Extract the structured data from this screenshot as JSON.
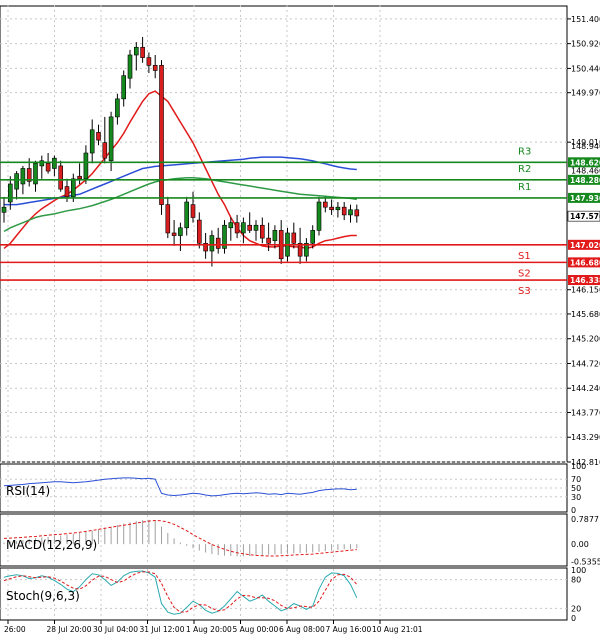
{
  "chart_data": [
    {
      "panel": "main",
      "type": "candlestick",
      "ylim": [
        142.81,
        151.65
      ],
      "y_ticks": [
        "151.400",
        "150.920",
        "150.440",
        "149.970",
        "149.010",
        "147.576",
        "147.020",
        "146.680",
        "146.338",
        "146.150",
        "145.680",
        "145.200",
        "144.720",
        "144.240",
        "143.770",
        "143.290",
        "142.810"
      ],
      "y_ticks_partial": [
        "148.940",
        "148.460"
      ],
      "x_ticks": [
        "26:00",
        "28 Jul 20:00",
        "30 Jul 04:00",
        "31 Jul 12:00",
        "1 Aug 20:00",
        "5 Aug 00:00",
        "6 Aug 08:00",
        "7 Aug 16:00",
        "10 Aug 21:01"
      ],
      "current_price": "147.576",
      "levels": [
        {
          "name": "R3",
          "value": "148.620",
          "color": "#16891e"
        },
        {
          "name": "R2",
          "value": "148.280",
          "color": "#16891e"
        },
        {
          "name": "R1",
          "value": "147.930",
          "color": "#16891e"
        },
        {
          "name": "S1",
          "value": "147.020",
          "color": "#e11919"
        },
        {
          "name": "S2",
          "value": "146.680",
          "color": "#e11919"
        },
        {
          "name": "S3",
          "value": "146.338",
          "color": "#e11919"
        }
      ],
      "candles": [
        {
          "o": 147.65,
          "h": 147.95,
          "l": 147.45,
          "c": 147.75
        },
        {
          "o": 147.85,
          "h": 148.35,
          "l": 147.7,
          "c": 148.2
        },
        {
          "o": 148.1,
          "h": 148.45,
          "l": 147.9,
          "c": 148.4
        },
        {
          "o": 148.2,
          "h": 148.55,
          "l": 148.0,
          "c": 148.5
        },
        {
          "o": 148.5,
          "h": 148.7,
          "l": 148.15,
          "c": 148.25
        },
        {
          "o": 148.2,
          "h": 148.65,
          "l": 148.05,
          "c": 148.6
        },
        {
          "o": 148.55,
          "h": 148.75,
          "l": 148.3,
          "c": 148.65
        },
        {
          "o": 148.6,
          "h": 148.8,
          "l": 148.4,
          "c": 148.45
        },
        {
          "o": 148.5,
          "h": 148.75,
          "l": 148.35,
          "c": 148.7
        },
        {
          "o": 148.55,
          "h": 148.65,
          "l": 148.05,
          "c": 148.1
        },
        {
          "o": 148.15,
          "h": 148.3,
          "l": 147.85,
          "c": 147.95
        },
        {
          "o": 147.95,
          "h": 148.4,
          "l": 147.85,
          "c": 148.3
        },
        {
          "o": 148.35,
          "h": 148.6,
          "l": 148.2,
          "c": 148.3
        },
        {
          "o": 148.3,
          "h": 148.95,
          "l": 148.2,
          "c": 148.8
        },
        {
          "o": 148.8,
          "h": 149.45,
          "l": 148.6,
          "c": 149.25
        },
        {
          "o": 149.2,
          "h": 149.35,
          "l": 148.95,
          "c": 149.05
        },
        {
          "o": 149.0,
          "h": 149.5,
          "l": 148.6,
          "c": 148.7
        },
        {
          "o": 148.65,
          "h": 149.6,
          "l": 148.45,
          "c": 149.5
        },
        {
          "o": 149.5,
          "h": 149.95,
          "l": 149.35,
          "c": 149.85
        },
        {
          "o": 149.85,
          "h": 150.4,
          "l": 149.7,
          "c": 150.3
        },
        {
          "o": 150.25,
          "h": 150.8,
          "l": 150.05,
          "c": 150.7
        },
        {
          "o": 150.7,
          "h": 150.95,
          "l": 150.4,
          "c": 150.85
        },
        {
          "o": 150.85,
          "h": 151.05,
          "l": 150.55,
          "c": 150.65
        },
        {
          "o": 150.65,
          "h": 150.75,
          "l": 150.35,
          "c": 150.5
        },
        {
          "o": 150.5,
          "h": 150.7,
          "l": 150.25,
          "c": 150.4
        },
        {
          "o": 150.5,
          "h": 150.6,
          "l": 147.6,
          "c": 147.8
        },
        {
          "o": 147.8,
          "h": 147.95,
          "l": 147.15,
          "c": 147.25
        },
        {
          "o": 147.25,
          "h": 147.5,
          "l": 147.0,
          "c": 147.2
        },
        {
          "o": 147.2,
          "h": 147.45,
          "l": 146.9,
          "c": 147.35
        },
        {
          "o": 147.35,
          "h": 147.95,
          "l": 147.2,
          "c": 147.85
        },
        {
          "o": 147.8,
          "h": 148.05,
          "l": 147.45,
          "c": 147.55
        },
        {
          "o": 147.5,
          "h": 147.65,
          "l": 146.95,
          "c": 147.05
        },
        {
          "o": 147.05,
          "h": 147.25,
          "l": 146.75,
          "c": 146.9
        },
        {
          "o": 146.9,
          "h": 147.3,
          "l": 146.6,
          "c": 147.2
        },
        {
          "o": 147.15,
          "h": 147.35,
          "l": 146.85,
          "c": 146.95
        },
        {
          "o": 146.95,
          "h": 147.5,
          "l": 146.85,
          "c": 147.4
        },
        {
          "o": 147.35,
          "h": 147.55,
          "l": 147.1,
          "c": 147.45
        },
        {
          "o": 147.45,
          "h": 147.6,
          "l": 147.15,
          "c": 147.25
        },
        {
          "o": 147.25,
          "h": 147.55,
          "l": 147.05,
          "c": 147.45
        },
        {
          "o": 147.4,
          "h": 147.65,
          "l": 147.25,
          "c": 147.3
        },
        {
          "o": 147.3,
          "h": 147.5,
          "l": 147.1,
          "c": 147.4
        },
        {
          "o": 147.4,
          "h": 147.55,
          "l": 147.05,
          "c": 147.15
        },
        {
          "o": 147.15,
          "h": 147.45,
          "l": 146.9,
          "c": 147.05
        },
        {
          "o": 147.1,
          "h": 147.4,
          "l": 146.95,
          "c": 147.3
        },
        {
          "o": 147.3,
          "h": 147.5,
          "l": 146.65,
          "c": 146.75
        },
        {
          "o": 146.8,
          "h": 147.35,
          "l": 146.7,
          "c": 147.25
        },
        {
          "o": 147.25,
          "h": 147.45,
          "l": 146.95,
          "c": 147.05
        },
        {
          "o": 147.05,
          "h": 147.35,
          "l": 146.65,
          "c": 146.8
        },
        {
          "o": 146.8,
          "h": 147.15,
          "l": 146.7,
          "c": 147.05
        },
        {
          "o": 147.05,
          "h": 147.4,
          "l": 146.95,
          "c": 147.3
        },
        {
          "o": 147.3,
          "h": 147.95,
          "l": 147.2,
          "c": 147.85
        },
        {
          "o": 147.85,
          "h": 147.95,
          "l": 147.65,
          "c": 147.75
        },
        {
          "o": 147.75,
          "h": 147.9,
          "l": 147.6,
          "c": 147.7
        },
        {
          "o": 147.7,
          "h": 147.85,
          "l": 147.55,
          "c": 147.75
        },
        {
          "o": 147.75,
          "h": 147.85,
          "l": 147.5,
          "c": 147.6
        },
        {
          "o": 147.6,
          "h": 147.8,
          "l": 147.45,
          "c": 147.7
        },
        {
          "o": 147.7,
          "h": 147.8,
          "l": 147.45,
          "c": 147.58
        }
      ],
      "series": [
        {
          "color": "#e11919",
          "values": [
            146.95,
            147.05,
            147.2,
            147.35,
            147.5,
            147.62,
            147.72,
            147.8,
            147.88,
            147.95,
            148.0,
            148.08,
            148.18,
            148.28,
            148.4,
            148.55,
            148.7,
            148.85,
            149.0,
            149.18,
            149.4,
            149.6,
            149.8,
            149.95,
            150.0,
            149.9,
            149.8,
            149.6,
            149.4,
            149.2,
            149.0,
            148.75,
            148.5,
            148.25,
            148.0,
            147.8,
            147.55,
            147.35,
            147.2,
            147.1,
            147.05,
            147.0,
            146.98,
            146.98,
            147.0,
            147.0,
            146.98,
            146.98,
            146.95,
            146.98,
            147.05,
            147.1,
            147.12,
            147.15,
            147.18,
            147.2,
            147.2
          ]
        },
        {
          "color": "#2a4fd6",
          "values": [
            147.8,
            147.8,
            147.8,
            147.82,
            147.84,
            147.86,
            147.88,
            147.9,
            147.92,
            147.94,
            147.96,
            147.98,
            148.0,
            148.05,
            148.1,
            148.15,
            148.2,
            148.25,
            148.3,
            148.35,
            148.4,
            148.45,
            148.5,
            148.52,
            148.54,
            148.55,
            148.56,
            148.57,
            148.58,
            148.59,
            148.6,
            148.61,
            148.62,
            148.63,
            148.64,
            148.65,
            148.66,
            148.67,
            148.68,
            148.7,
            148.71,
            148.72,
            148.72,
            148.72,
            148.72,
            148.71,
            148.7,
            148.69,
            148.67,
            148.65,
            148.62,
            148.59,
            148.56,
            148.53,
            148.51,
            148.49,
            148.48
          ]
        },
        {
          "color": "#2f9a45",
          "values": [
            147.28,
            147.35,
            147.4,
            147.45,
            147.5,
            147.55,
            147.58,
            147.6,
            147.62,
            147.65,
            147.68,
            147.7,
            147.72,
            147.75,
            147.78,
            147.82,
            147.86,
            147.9,
            147.95,
            148.0,
            148.05,
            148.1,
            148.15,
            148.2,
            148.24,
            148.27,
            148.28,
            148.3,
            148.31,
            148.32,
            148.32,
            148.31,
            148.3,
            148.28,
            148.26,
            148.24,
            148.22,
            148.2,
            148.18,
            148.16,
            148.14,
            148.12,
            148.1,
            148.08,
            148.06,
            148.04,
            148.02,
            148.0,
            147.99,
            147.98,
            147.97,
            147.96,
            147.95,
            147.94,
            147.93,
            147.92,
            147.9
          ]
        }
      ]
    },
    {
      "panel": "rsi",
      "type": "line",
      "title": "RSI(14)",
      "y_ticks": [
        "100",
        "70",
        "50",
        "30",
        "0"
      ],
      "ylim": [
        0,
        100
      ],
      "series": [
        {
          "color": "#2a4fd6",
          "values": [
            55,
            56,
            57,
            58,
            60,
            61,
            62,
            63,
            64,
            64,
            63,
            62,
            63,
            64,
            66,
            68,
            70,
            71,
            72,
            73,
            73,
            72,
            71,
            72,
            70,
            38,
            34,
            33,
            34,
            36,
            38,
            37,
            34,
            32,
            33,
            35,
            37,
            38,
            37,
            38,
            39,
            38,
            36,
            37,
            35,
            38,
            37,
            36,
            38,
            40,
            44,
            46,
            47,
            48,
            48,
            46,
            47
          ]
        }
      ]
    },
    {
      "panel": "macd",
      "type": "bar+line",
      "title": "MACD(12,26,9)",
      "y_ticks": [
        "0.7877",
        "0.00",
        "-0.5355"
      ],
      "ylim": [
        -0.62,
        0.88
      ],
      "histogram": [
        0.05,
        0.08,
        0.1,
        0.13,
        0.16,
        0.19,
        0.21,
        0.23,
        0.25,
        0.27,
        0.3,
        0.32,
        0.35,
        0.38,
        0.42,
        0.46,
        0.5,
        0.55,
        0.6,
        0.64,
        0.68,
        0.72,
        0.75,
        0.76,
        0.75,
        0.55,
        0.35,
        0.18,
        0.05,
        -0.05,
        -0.13,
        -0.2,
        -0.26,
        -0.31,
        -0.34,
        -0.36,
        -0.37,
        -0.38,
        -0.38,
        -0.37,
        -0.36,
        -0.35,
        -0.33,
        -0.32,
        -0.31,
        -0.3,
        -0.29,
        -0.28,
        -0.27,
        -0.26,
        -0.24,
        -0.22,
        -0.2,
        -0.18,
        -0.16,
        -0.15,
        -0.13
      ],
      "signal": [
        0.18,
        0.19,
        0.2,
        0.21,
        0.23,
        0.24,
        0.26,
        0.28,
        0.3,
        0.31,
        0.33,
        0.35,
        0.37,
        0.4,
        0.43,
        0.46,
        0.5,
        0.53,
        0.56,
        0.59,
        0.62,
        0.66,
        0.69,
        0.72,
        0.74,
        0.73,
        0.69,
        0.62,
        0.52,
        0.42,
        0.3,
        0.19,
        0.09,
        -0.01,
        -0.09,
        -0.16,
        -0.22,
        -0.27,
        -0.3,
        -0.33,
        -0.35,
        -0.36,
        -0.37,
        -0.37,
        -0.36,
        -0.35,
        -0.34,
        -0.33,
        -0.32,
        -0.31,
        -0.29,
        -0.27,
        -0.25,
        -0.23,
        -0.21,
        -0.19,
        -0.17
      ]
    },
    {
      "panel": "stoch",
      "type": "line",
      "title": "Stoch(9,6,3)",
      "y_ticks": [
        "100",
        "80",
        "20",
        "0"
      ],
      "ylim": [
        0,
        100
      ],
      "series": [
        {
          "color": "#2aaab0",
          "values": [
            85,
            88,
            90,
            88,
            82,
            84,
            88,
            85,
            78,
            70,
            60,
            55,
            65,
            80,
            92,
            90,
            80,
            68,
            75,
            88,
            95,
            97,
            98,
            94,
            85,
            30,
            12,
            8,
            10,
            22,
            35,
            28,
            16,
            10,
            14,
            25,
            40,
            55,
            45,
            35,
            40,
            48,
            35,
            25,
            15,
            20,
            30,
            25,
            18,
            25,
            60,
            85,
            94,
            93,
            88,
            70,
            42
          ]
        },
        {
          "color": "#e11919",
          "values": [
            78,
            82,
            86,
            88,
            86,
            84,
            85,
            86,
            83,
            77,
            69,
            62,
            60,
            67,
            79,
            87,
            87,
            80,
            74,
            77,
            86,
            93,
            96,
            96,
            92,
            72,
            45,
            22,
            12,
            13,
            22,
            28,
            27,
            20,
            15,
            17,
            27,
            40,
            47,
            46,
            42,
            42,
            41,
            36,
            26,
            20,
            21,
            25,
            24,
            22,
            35,
            58,
            80,
            90,
            91,
            85,
            70
          ]
        }
      ]
    }
  ]
}
